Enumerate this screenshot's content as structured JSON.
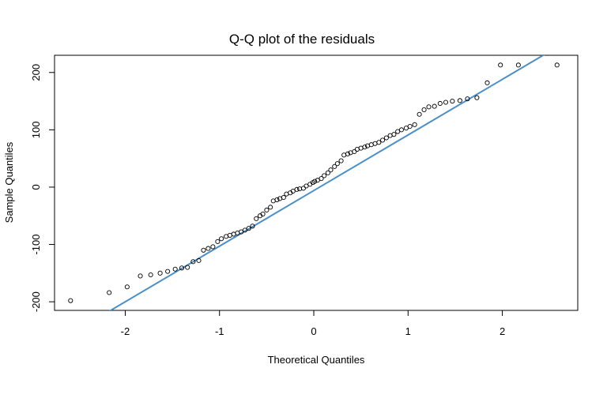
{
  "chart_data": {
    "type": "scatter",
    "title": "Q-Q plot of the residuals",
    "xlabel": "Theoretical Quantiles",
    "ylabel": "Sample Quantiles",
    "xlim": [
      -2.75,
      2.8
    ],
    "ylim": [
      -215,
      230
    ],
    "xticks": [
      -2,
      -1,
      0,
      1,
      2
    ],
    "xtick_labels": [
      "-2",
      "-1",
      "0",
      "1",
      "2"
    ],
    "yticks": [
      -200,
      -100,
      0,
      100,
      200
    ],
    "ytick_labels": [
      "-200",
      "-100",
      "0",
      "100",
      "200"
    ],
    "grid": false,
    "line_color": "#4a90c8",
    "point_color": "#000000",
    "reference_line": {
      "name": "qqline",
      "slope": 97,
      "intercept": -6
    },
    "series": [
      {
        "name": "residuals",
        "x": [
          -2.58,
          -2.17,
          -1.98,
          -1.84,
          -1.73,
          -1.63,
          -1.55,
          -1.47,
          -1.4,
          -1.34,
          -1.28,
          -1.22,
          -1.17,
          -1.12,
          -1.07,
          -1.02,
          -0.98,
          -0.93,
          -0.89,
          -0.85,
          -0.81,
          -0.77,
          -0.73,
          -0.69,
          -0.65,
          -0.61,
          -0.57,
          -0.54,
          -0.5,
          -0.46,
          -0.43,
          -0.39,
          -0.36,
          -0.32,
          -0.29,
          -0.25,
          -0.22,
          -0.18,
          -0.15,
          -0.11,
          -0.08,
          -0.04,
          -0.01,
          0.01,
          0.04,
          0.08,
          0.11,
          0.15,
          0.18,
          0.22,
          0.25,
          0.29,
          0.32,
          0.36,
          0.39,
          0.43,
          0.46,
          0.5,
          0.54,
          0.57,
          0.61,
          0.65,
          0.69,
          0.73,
          0.77,
          0.81,
          0.85,
          0.89,
          0.93,
          0.98,
          1.02,
          1.07,
          1.12,
          1.17,
          1.22,
          1.28,
          1.34,
          1.4,
          1.47,
          1.55,
          1.63,
          1.73,
          1.84,
          1.98,
          2.17,
          2.58
        ],
        "y": [
          -198,
          -184,
          -174,
          -155,
          -153,
          -150,
          -147,
          -143,
          -141,
          -140,
          -130,
          -128,
          -110,
          -107,
          -104,
          -95,
          -90,
          -86,
          -84,
          -82,
          -80,
          -78,
          -75,
          -72,
          -68,
          -55,
          -50,
          -47,
          -40,
          -35,
          -24,
          -22,
          -20,
          -18,
          -12,
          -10,
          -7,
          -4,
          -3,
          -2,
          2,
          5,
          8,
          10,
          12,
          15,
          20,
          25,
          30,
          36,
          41,
          46,
          56,
          58,
          60,
          62,
          66,
          68,
          70,
          72,
          74,
          76,
          78,
          82,
          86,
          90,
          92,
          97,
          100,
          103,
          106,
          109,
          127,
          135,
          140,
          141,
          146,
          148,
          150,
          151,
          154,
          156,
          182,
          213,
          213,
          213
        ]
      }
    ]
  }
}
